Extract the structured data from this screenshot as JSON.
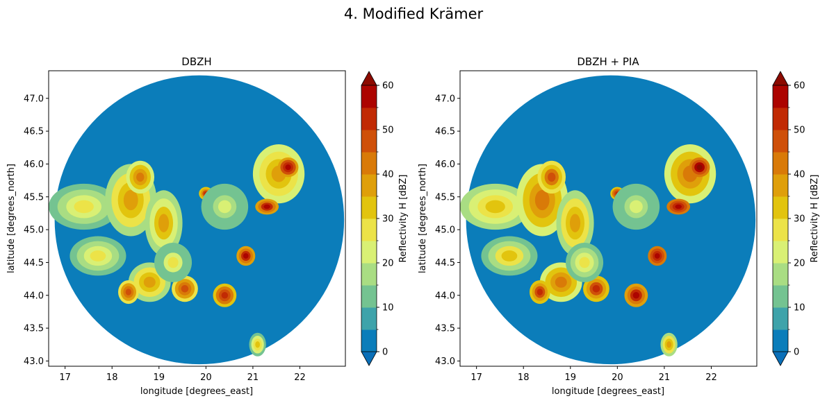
{
  "figure": {
    "suptitle": "4. Modified Krämer"
  },
  "chart_data": [
    {
      "type": "heatmap",
      "title": "DBZH",
      "xlabel": "longitude [degrees_east]",
      "ylabel": "latitude [degrees_north]",
      "xlim": [
        16.65,
        22.97
      ],
      "ylim": [
        42.92,
        47.42
      ],
      "xticks": [
        17,
        18,
        19,
        20,
        21,
        22
      ],
      "xtick_labels": [
        "17",
        "18",
        "19",
        "20",
        "21",
        "22"
      ],
      "yticks": [
        43.0,
        43.5,
        44.0,
        44.5,
        45.0,
        45.5,
        46.0,
        46.5,
        47.0
      ],
      "ytick_labels": [
        "43.0",
        "43.5",
        "44.0",
        "44.5",
        "45.0",
        "45.5",
        "46.0",
        "46.5",
        "47.0"
      ],
      "radar_center": [
        19.86,
        45.15
      ],
      "radar_radius_lat": 2.2,
      "background_value": 0,
      "echo_cells": [
        {
          "lon": 17.4,
          "lat": 45.35,
          "rlon": 0.75,
          "rlat": 0.35,
          "value": 24
        },
        {
          "lon": 17.7,
          "lat": 44.6,
          "rlon": 0.6,
          "rlat": 0.3,
          "value": 22
        },
        {
          "lon": 18.4,
          "lat": 45.45,
          "rlon": 0.55,
          "rlat": 0.55,
          "value": 33
        },
        {
          "lon": 18.6,
          "lat": 45.8,
          "rlon": 0.3,
          "rlat": 0.25,
          "value": 38
        },
        {
          "lon": 19.1,
          "lat": 45.1,
          "rlon": 0.4,
          "rlat": 0.5,
          "value": 30
        },
        {
          "lon": 18.8,
          "lat": 44.2,
          "rlon": 0.45,
          "rlat": 0.3,
          "value": 33
        },
        {
          "lon": 18.35,
          "lat": 44.05,
          "rlon": 0.22,
          "rlat": 0.18,
          "value": 43
        },
        {
          "lon": 19.55,
          "lat": 44.1,
          "rlon": 0.28,
          "rlat": 0.2,
          "value": 42
        },
        {
          "lon": 20.4,
          "lat": 44.0,
          "rlon": 0.25,
          "rlat": 0.18,
          "value": 47
        },
        {
          "lon": 20.85,
          "lat": 44.6,
          "rlon": 0.2,
          "rlat": 0.15,
          "value": 50
        },
        {
          "lon": 20.0,
          "lat": 45.55,
          "rlon": 0.15,
          "rlat": 0.1,
          "value": 45
        },
        {
          "lon": 21.55,
          "lat": 45.85,
          "rlon": 0.55,
          "rlat": 0.45,
          "value": 34
        },
        {
          "lon": 21.75,
          "lat": 45.95,
          "rlon": 0.22,
          "rlat": 0.15,
          "value": 52
        },
        {
          "lon": 21.3,
          "lat": 45.35,
          "rlon": 0.25,
          "rlat": 0.12,
          "value": 50
        },
        {
          "lon": 21.1,
          "lat": 43.25,
          "rlon": 0.18,
          "rlat": 0.18,
          "value": 28
        },
        {
          "lon": 19.3,
          "lat": 44.5,
          "rlon": 0.4,
          "rlat": 0.3,
          "value": 20
        },
        {
          "lon": 20.4,
          "lat": 45.35,
          "rlon": 0.5,
          "rlat": 0.35,
          "value": 15
        }
      ]
    },
    {
      "type": "heatmap",
      "title": "DBZH + PIA",
      "xlabel": "longitude [degrees_east]",
      "ylabel": "latitude [degrees_north]",
      "xlim": [
        16.65,
        22.97
      ],
      "ylim": [
        42.92,
        47.42
      ],
      "xticks": [
        17,
        18,
        19,
        20,
        21,
        22
      ],
      "xtick_labels": [
        "17",
        "18",
        "19",
        "20",
        "21",
        "22"
      ],
      "yticks": [
        43.0,
        43.5,
        44.0,
        44.5,
        45.0,
        45.5,
        46.0,
        46.5,
        47.0
      ],
      "ytick_labels": [
        "43.0",
        "43.5",
        "44.0",
        "44.5",
        "45.0",
        "45.5",
        "46.0",
        "46.5",
        "47.0"
      ],
      "radar_center": [
        19.86,
        45.15
      ],
      "radar_radius_lat": 2.2,
      "background_value": 0,
      "echo_cells": [
        {
          "lon": 17.4,
          "lat": 45.35,
          "rlon": 0.75,
          "rlat": 0.35,
          "value": 29
        },
        {
          "lon": 17.7,
          "lat": 44.6,
          "rlon": 0.6,
          "rlat": 0.3,
          "value": 26
        },
        {
          "lon": 18.4,
          "lat": 45.45,
          "rlon": 0.55,
          "rlat": 0.55,
          "value": 37
        },
        {
          "lon": 18.6,
          "lat": 45.8,
          "rlon": 0.3,
          "rlat": 0.25,
          "value": 41
        },
        {
          "lon": 19.1,
          "lat": 45.1,
          "rlon": 0.4,
          "rlat": 0.5,
          "value": 33
        },
        {
          "lon": 18.8,
          "lat": 44.2,
          "rlon": 0.45,
          "rlat": 0.3,
          "value": 37
        },
        {
          "lon": 18.35,
          "lat": 44.05,
          "rlon": 0.22,
          "rlat": 0.18,
          "value": 46
        },
        {
          "lon": 19.55,
          "lat": 44.1,
          "rlon": 0.28,
          "rlat": 0.2,
          "value": 46
        },
        {
          "lon": 20.4,
          "lat": 44.0,
          "rlon": 0.25,
          "rlat": 0.18,
          "value": 51
        },
        {
          "lon": 20.85,
          "lat": 44.6,
          "rlon": 0.2,
          "rlat": 0.15,
          "value": 54
        },
        {
          "lon": 20.0,
          "lat": 45.55,
          "rlon": 0.15,
          "rlat": 0.1,
          "value": 48
        },
        {
          "lon": 21.55,
          "lat": 45.85,
          "rlon": 0.55,
          "rlat": 0.45,
          "value": 37
        },
        {
          "lon": 21.75,
          "lat": 45.95,
          "rlon": 0.22,
          "rlat": 0.15,
          "value": 56
        },
        {
          "lon": 21.3,
          "lat": 45.35,
          "rlon": 0.25,
          "rlat": 0.12,
          "value": 54
        },
        {
          "lon": 21.1,
          "lat": 43.25,
          "rlon": 0.18,
          "rlat": 0.18,
          "value": 32
        },
        {
          "lon": 19.3,
          "lat": 44.5,
          "rlon": 0.4,
          "rlat": 0.3,
          "value": 24
        },
        {
          "lon": 20.4,
          "lat": 45.35,
          "rlon": 0.5,
          "rlat": 0.35,
          "value": 18
        }
      ]
    }
  ],
  "colorbar": {
    "label": "Reflectivity H [dBZ]",
    "levels": [
      0,
      5,
      10,
      15,
      20,
      25,
      30,
      35,
      40,
      45,
      50,
      55,
      60
    ],
    "tick_values": [
      0,
      10,
      20,
      30,
      40,
      50,
      60
    ],
    "tick_labels": [
      "0",
      "10",
      "20",
      "30",
      "40",
      "50",
      "60"
    ],
    "extend": "both",
    "under_color": "#0a6fb8",
    "over_color": "#8c0a00",
    "colors": [
      "#0b7dba",
      "#3ea3aa",
      "#74c391",
      "#a9dd83",
      "#d9f074",
      "#ece348",
      "#e2c40e",
      "#df9f0a",
      "#d97a08",
      "#cf5009",
      "#c12a04",
      "#ac0400"
    ]
  }
}
